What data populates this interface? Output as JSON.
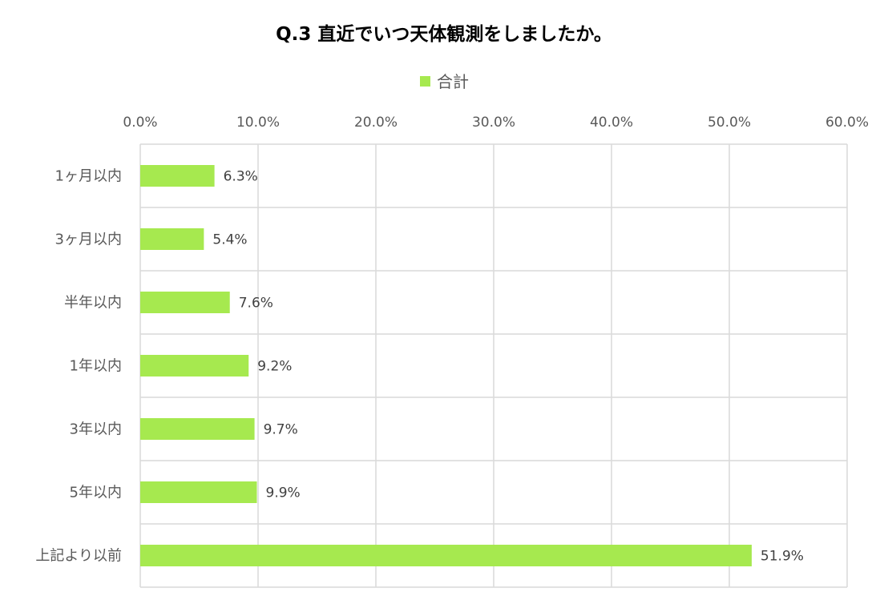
{
  "chart_data": {
    "type": "bar",
    "orientation": "horizontal",
    "title": "Q.3 直近でいつ天体観測をしましたか。",
    "categories": [
      "1ヶ月以内",
      "3ヶ月以内",
      "半年以内",
      "1年以内",
      "3年以内",
      "5年以内",
      "上記より以前"
    ],
    "series": [
      {
        "name": "合計",
        "values": [
          6.3,
          5.4,
          7.6,
          9.2,
          9.7,
          9.9,
          51.9
        ],
        "data_labels": [
          "6.3%",
          "5.4%",
          "7.6%",
          "9.2%",
          "9.7%",
          "9.9%",
          "51.9%"
        ],
        "color": "#a6e94f"
      }
    ],
    "x_ticks": [
      "0.0%",
      "10.0%",
      "20.0%",
      "30.0%",
      "40.0%",
      "50.0%",
      "60.0%"
    ],
    "xlim": [
      0,
      60
    ],
    "grid": true,
    "legend_position": "top"
  }
}
